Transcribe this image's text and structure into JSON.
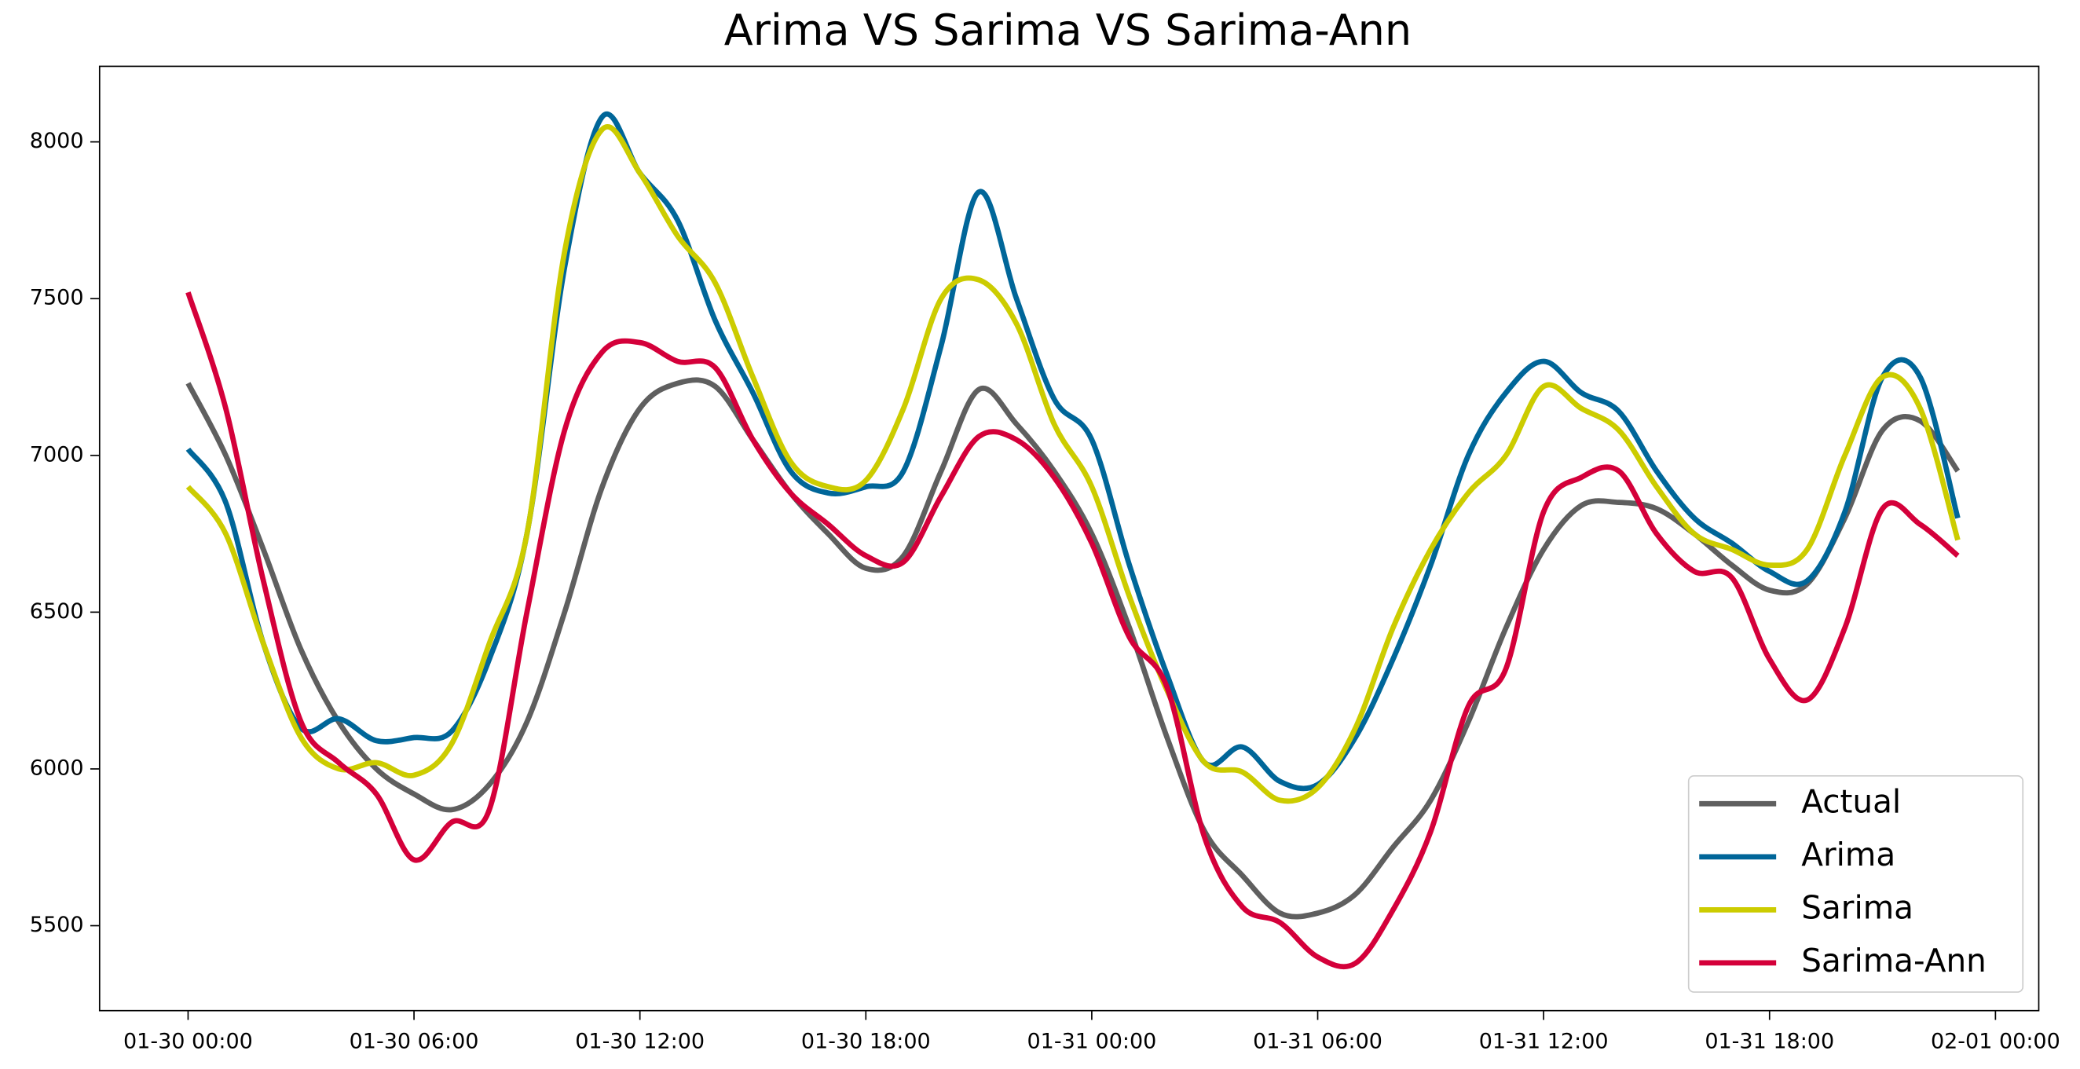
{
  "chart_data": {
    "type": "line",
    "title": "Arima VS Sarima VS Sarima-Ann",
    "x": [
      "01-30 00:00",
      "01-30 01:00",
      "01-30 02:00",
      "01-30 03:00",
      "01-30 04:00",
      "01-30 05:00",
      "01-30 06:00",
      "01-30 07:00",
      "01-30 08:00",
      "01-30 09:00",
      "01-30 10:00",
      "01-30 11:00",
      "01-30 12:00",
      "01-30 13:00",
      "01-30 14:00",
      "01-30 15:00",
      "01-30 16:00",
      "01-30 17:00",
      "01-30 18:00",
      "01-30 19:00",
      "01-30 20:00",
      "01-30 21:00",
      "01-30 22:00",
      "01-30 23:00",
      "01-31 00:00",
      "01-31 01:00",
      "01-31 02:00",
      "01-31 03:00",
      "01-31 04:00",
      "01-31 05:00",
      "01-31 06:00",
      "01-31 07:00",
      "01-31 08:00",
      "01-31 09:00",
      "01-31 10:00",
      "01-31 11:00",
      "01-31 12:00",
      "01-31 13:00",
      "01-31 14:00",
      "01-31 15:00",
      "01-31 16:00",
      "01-31 17:00",
      "01-31 18:00",
      "01-31 19:00",
      "01-31 20:00",
      "01-31 21:00",
      "01-31 22:00",
      "01-31 23:00"
    ],
    "series": [
      {
        "name": "Actual",
        "color": "#5f5f5f",
        "values": [
          7230,
          7000,
          6700,
          6380,
          6150,
          6000,
          5920,
          5870,
          5950,
          6150,
          6500,
          6900,
          7150,
          7230,
          7220,
          7050,
          6880,
          6750,
          6640,
          6680,
          6950,
          7210,
          7100,
          6950,
          6750,
          6450,
          6100,
          5800,
          5660,
          5540,
          5540,
          5600,
          5750,
          5900,
          6150,
          6450,
          6700,
          6840,
          6850,
          6830,
          6750,
          6650,
          6570,
          6590,
          6800,
          7080,
          7110,
          6950
        ]
      },
      {
        "name": "Arima",
        "color": "#006699",
        "values": [
          7020,
          6850,
          6400,
          6130,
          6160,
          6090,
          6100,
          6120,
          6350,
          6750,
          7600,
          8080,
          7900,
          7750,
          7430,
          7200,
          6950,
          6880,
          6900,
          6950,
          7350,
          7840,
          7500,
          7180,
          7050,
          6650,
          6300,
          6020,
          6070,
          5960,
          5950,
          6100,
          6350,
          6650,
          7000,
          7200,
          7300,
          7200,
          7140,
          6950,
          6800,
          6720,
          6630,
          6600,
          6820,
          7250,
          7250,
          6800
        ]
      },
      {
        "name": "Sarima",
        "color": "#cccc00",
        "values": [
          6900,
          6750,
          6400,
          6100,
          6000,
          6020,
          5980,
          6080,
          6400,
          6750,
          7650,
          8040,
          7900,
          7700,
          7550,
          7250,
          6980,
          6900,
          6920,
          7150,
          7500,
          7560,
          7420,
          7100,
          6900,
          6550,
          6250,
          6020,
          5990,
          5900,
          5940,
          6130,
          6450,
          6700,
          6880,
          7000,
          7220,
          7150,
          7080,
          6900,
          6750,
          6700,
          6650,
          6700,
          7000,
          7250,
          7150,
          6730
        ]
      },
      {
        "name": "Sarima-Ann",
        "color": "#d4003a",
        "values": [
          7520,
          7150,
          6600,
          6150,
          6020,
          5920,
          5710,
          5830,
          5870,
          6500,
          7080,
          7330,
          7360,
          7300,
          7280,
          7050,
          6880,
          6780,
          6680,
          6660,
          6870,
          7060,
          7050,
          6930,
          6720,
          6420,
          6260,
          5780,
          5560,
          5510,
          5400,
          5380,
          5550,
          5800,
          6200,
          6320,
          6820,
          6930,
          6950,
          6750,
          6630,
          6610,
          6350,
          6220,
          6450,
          6830,
          6780,
          6680
        ]
      }
    ],
    "xlim": [
      "01-29 21:39",
      "02-01 01:09"
    ],
    "xticks": [
      "01-30 00:00",
      "01-30 06:00",
      "01-30 12:00",
      "01-30 18:00",
      "01-31 00:00",
      "01-31 06:00",
      "01-31 12:00",
      "01-31 18:00",
      "02-01 00:00"
    ],
    "ylim": [
      5229,
      8241
    ],
    "yticks": [
      5500,
      6000,
      6500,
      7000,
      7500,
      8000
    ],
    "legend": "lower right"
  }
}
